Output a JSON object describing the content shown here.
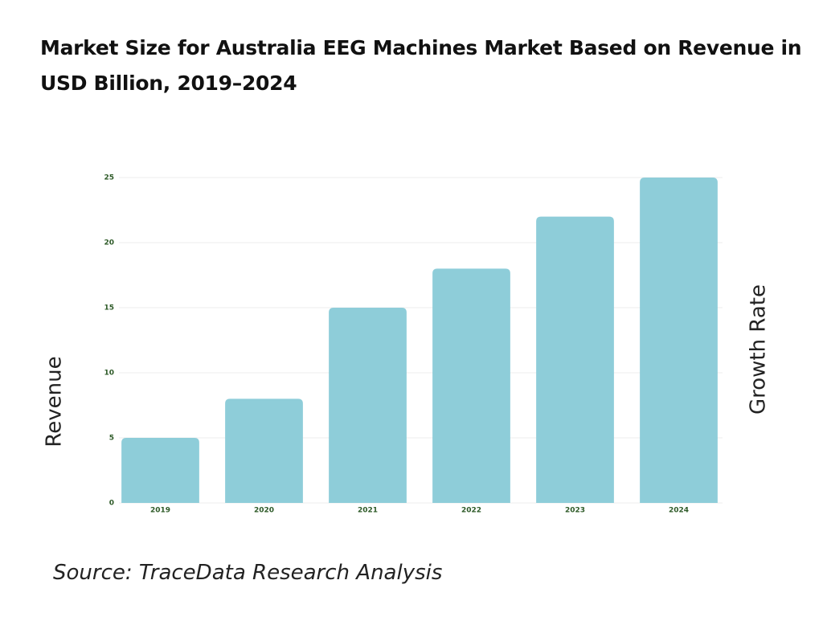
{
  "chart_data": {
    "type": "bar",
    "title": "Market Size for Australia EEG Machines Market Based on Revenue in USD Billion, 2019–2024",
    "categories": [
      "2019",
      "2020",
      "2021",
      "2022",
      "2023",
      "2024"
    ],
    "values": [
      5,
      8,
      15,
      18,
      22,
      25
    ],
    "color": "#8ecdd9",
    "ylim": [
      0,
      25
    ],
    "yticks": [
      0,
      5,
      10,
      15,
      20,
      25
    ],
    "grid": true,
    "y_label": "Revenue",
    "y2_label": "Growth Rate",
    "source": "Source: TraceData Research Analysis"
  }
}
